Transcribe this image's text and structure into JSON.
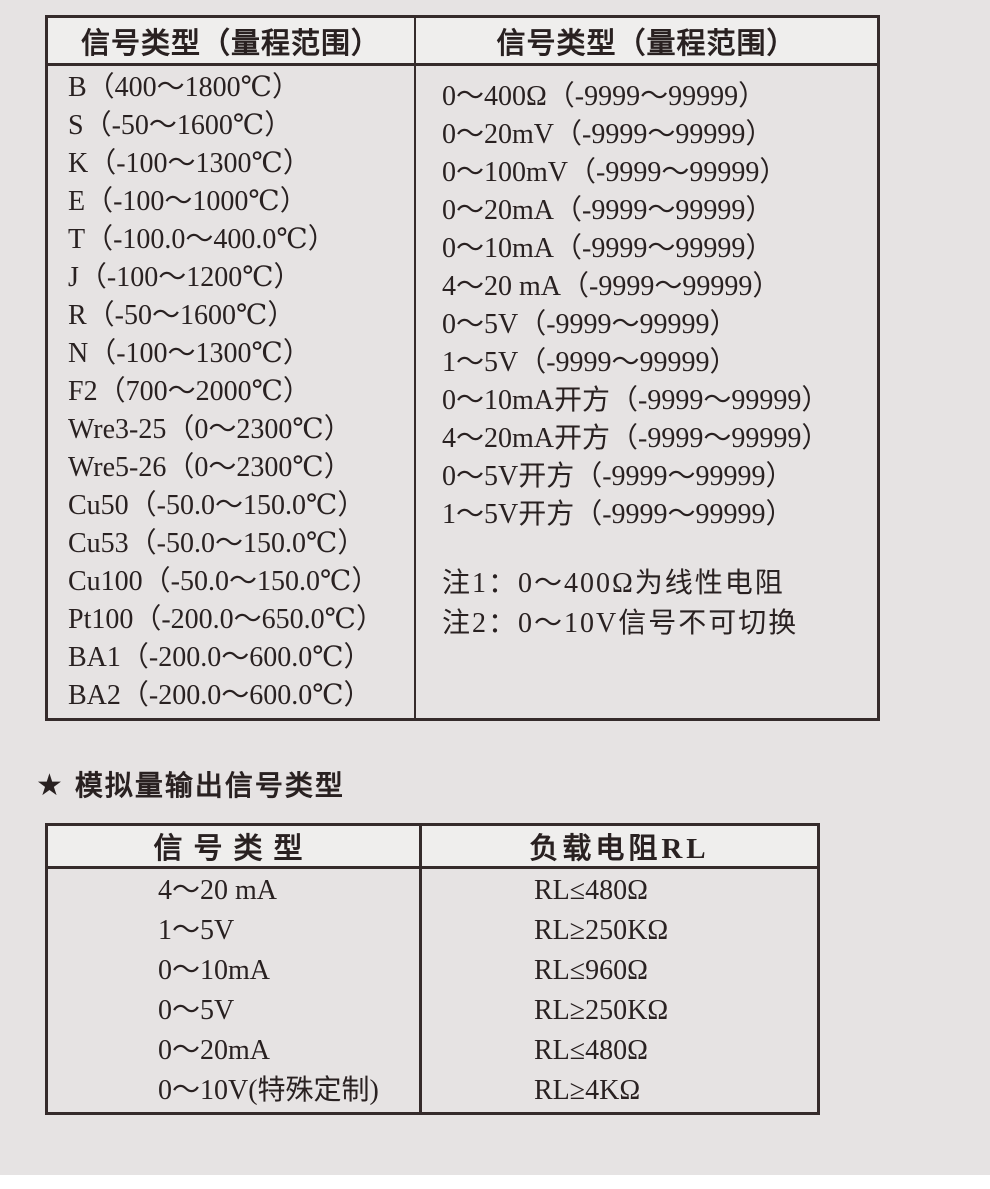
{
  "colors": {
    "page_background": "#e6e3e3",
    "table_border": "#352b2b",
    "header_background": "#efeeed",
    "text": "#292121"
  },
  "table1": {
    "header_left": "信号类型（量程范围）",
    "header_right": "信号类型（量程范围）",
    "left_rows": [
      "B（400～1800℃）",
      "S（-50～1600℃）",
      "K（-100～1300℃）",
      "E（-100～1000℃）",
      "T（-100.0～400.0℃）",
      "J（-100～1200℃）",
      "R（-50～1600℃）",
      "N（-100～1300℃）",
      "F2（700～2000℃）",
      "Wre3-25（0～2300℃）",
      "Wre5-26（0～2300℃）",
      "Cu50（-50.0～150.0℃）",
      "Cu53（-50.0～150.0℃）",
      "Cu100（-50.0～150.0℃）",
      "Pt100（-200.0～650.0℃）",
      "BA1（-200.0～600.0℃）",
      "BA2（-200.0～600.0℃）"
    ],
    "right_rows": [
      "0～400Ω（-9999～99999）",
      "0～20mV（-9999～99999）",
      "0～100mV（-9999～99999）",
      "0～20mA（-9999～99999）",
      "0～10mA（-9999～99999）",
      "4～20 mA（-9999～99999）",
      "0～5V（-9999～99999）",
      "1～5V（-9999～99999）",
      "0～10mA开方（-9999～99999）",
      "4～20mA开方（-9999～99999）",
      "0～5V开方（-9999～99999）",
      "1～5V开方（-9999～99999）"
    ],
    "notes": [
      "注1：0～400Ω为线性电阻",
      "注2：0～10V信号不可切换"
    ]
  },
  "star_section": {
    "star_icon": "★",
    "label": "模拟量输出信号类型"
  },
  "table2": {
    "header_signal": "信号类型",
    "header_load": "负载电阻RL",
    "rows": [
      {
        "signal": "4～20 mA",
        "load": "RL≤480Ω"
      },
      {
        "signal": "1～5V",
        "load": "RL≥250KΩ"
      },
      {
        "signal": "0～10mA",
        "load": "RL≤960Ω"
      },
      {
        "signal": "0～5V",
        "load": "RL≥250KΩ"
      },
      {
        "signal": "0～20mA",
        "load": "RL≤480Ω"
      },
      {
        "signal": "0～10V(特殊定制)",
        "load": "RL≥4KΩ"
      }
    ]
  }
}
